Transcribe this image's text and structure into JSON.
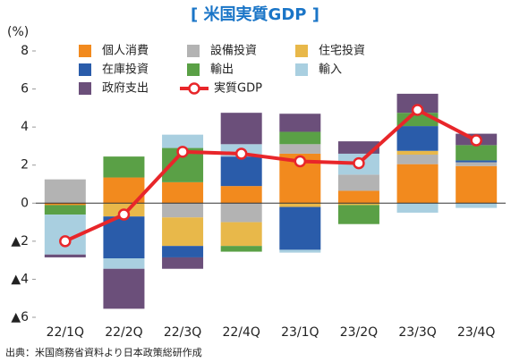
{
  "chart_data": {
    "type": "bar",
    "stacked": true,
    "title": "[ 米国実質GDP ]",
    "y_label": "(%)",
    "source": "出典：米国商務省資料より日本政策総研作成",
    "categories": [
      "22/1Q",
      "22/2Q",
      "22/3Q",
      "22/4Q",
      "23/1Q",
      "23/2Q",
      "23/3Q",
      "23/4Q"
    ],
    "ylim": [
      -6,
      8
    ],
    "yticks": [
      {
        "value": -6,
        "label": "▲6"
      },
      {
        "value": -4,
        "label": "▲4"
      },
      {
        "value": -2,
        "label": "▲2"
      },
      0,
      2,
      4,
      6,
      8
    ],
    "series": [
      {
        "name": "個人消費",
        "color": "#f28a1e",
        "values": [
          -0.1,
          1.35,
          1.1,
          0.9,
          2.6,
          0.65,
          2.05,
          1.95
        ]
      },
      {
        "name": "設備投資",
        "color": "#b3b3b3",
        "values": [
          1.25,
          0,
          -0.75,
          -1.0,
          0.5,
          0.85,
          0.5,
          0.2
        ]
      },
      {
        "name": "住宅投資",
        "color": "#e8b84a",
        "values": [
          0,
          -0.7,
          -1.5,
          -1.25,
          -0.2,
          -0.1,
          0.2,
          0
        ]
      },
      {
        "name": "在庫投資",
        "color": "#2a5caa",
        "values": [
          0,
          -2.2,
          -0.6,
          1.55,
          -2.25,
          0,
          1.3,
          0.1
        ]
      },
      {
        "name": "輸出",
        "color": "#5aa046",
        "values": [
          -0.5,
          1.1,
          1.8,
          -0.3,
          0.65,
          -1.0,
          0.7,
          0.8
        ]
      },
      {
        "name": "輸入",
        "color": "#a9cfe0",
        "values": [
          -2.1,
          -0.55,
          0.7,
          0.65,
          -0.15,
          1.1,
          -0.5,
          -0.25
        ]
      },
      {
        "name": "政府支出",
        "color": "#6b4f7a",
        "values": [
          -0.15,
          -2.1,
          -0.6,
          1.65,
          0.95,
          0.65,
          1.0,
          0.6
        ]
      },
      {
        "name": "実質GDP",
        "type": "line",
        "color": "#e8262a",
        "values": [
          -2.0,
          -0.6,
          2.7,
          2.6,
          2.2,
          2.1,
          4.9,
          3.3
        ]
      }
    ]
  }
}
